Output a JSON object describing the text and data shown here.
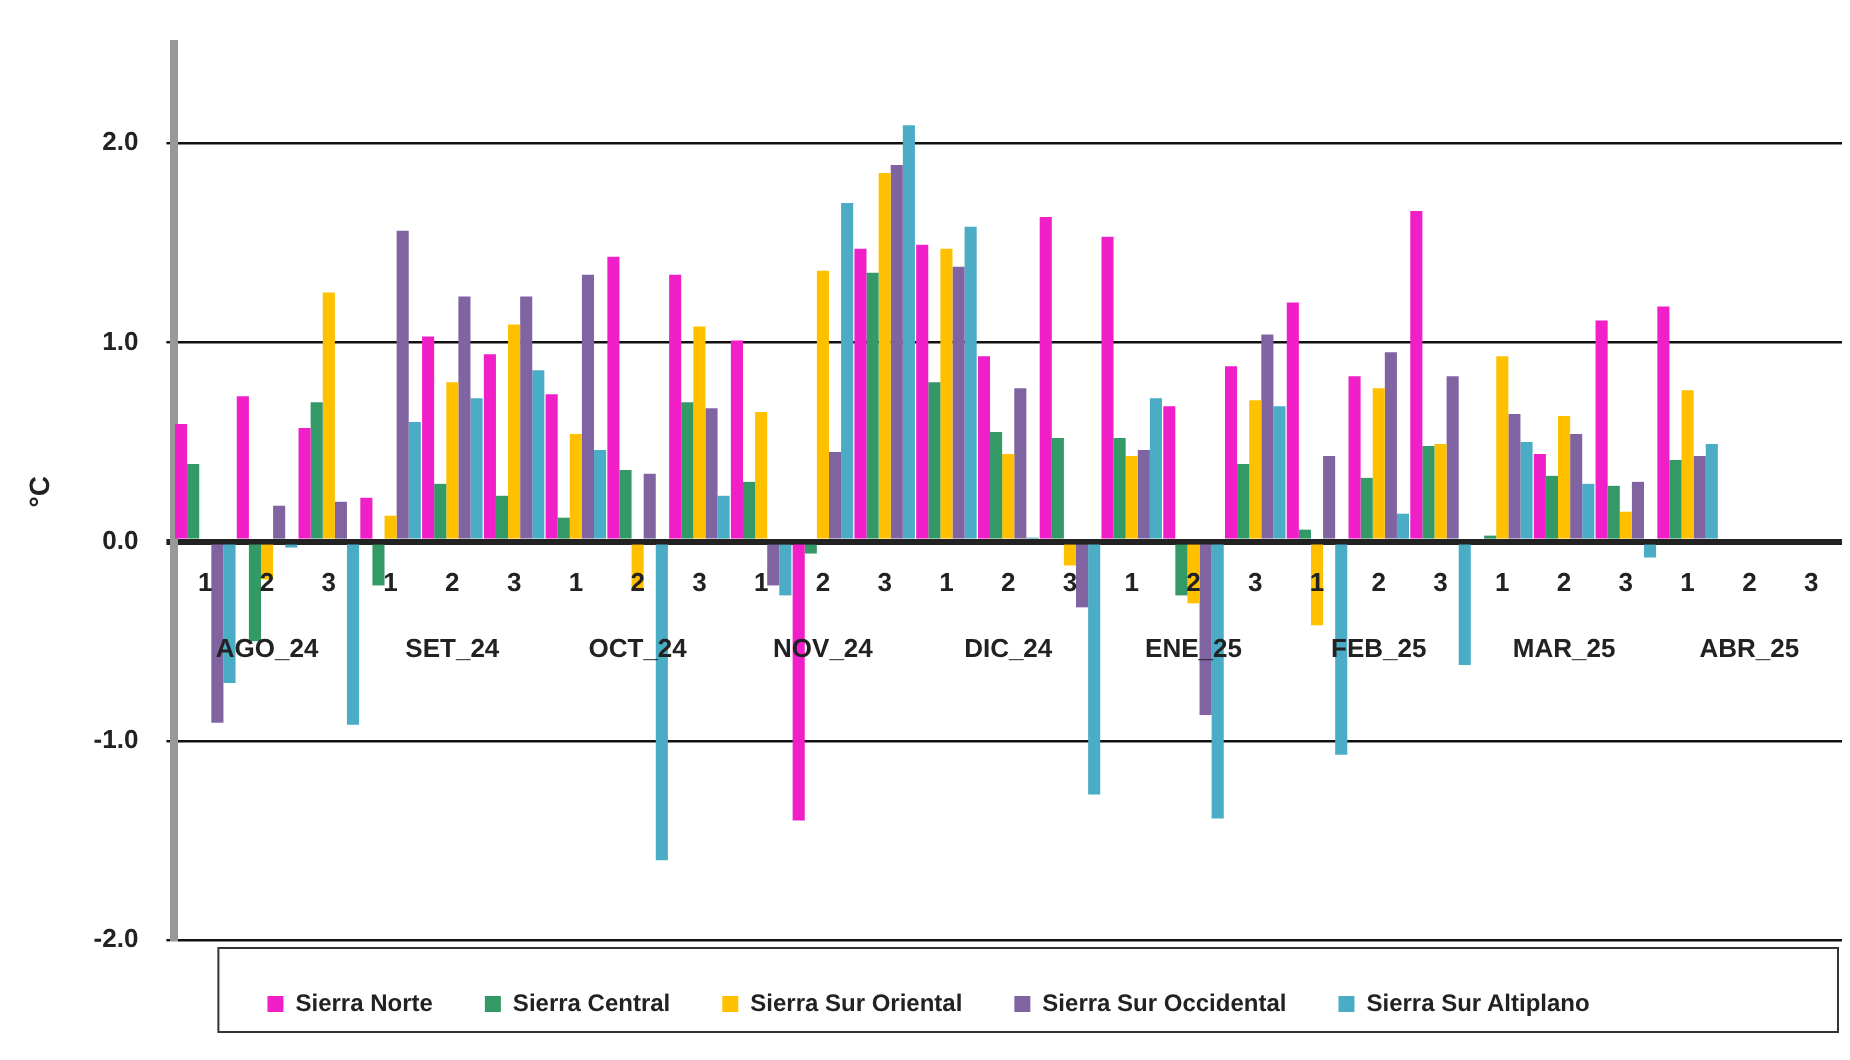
{
  "chart_data": {
    "type": "bar",
    "ylabel": "°C",
    "categories": [
      "1",
      "2",
      "3",
      "1",
      "2",
      "3",
      "1",
      "2",
      "3",
      "1",
      "2",
      "3",
      "1",
      "2",
      "3",
      "1",
      "2",
      "3",
      "1",
      "2",
      "3",
      "1",
      "2",
      "3",
      "1",
      "2",
      "3"
    ],
    "annotations": [
      "AGO_24",
      "SET_24",
      "OCT_24",
      "NOV_24",
      "DIC_24",
      "ENE_25",
      "FEB_25",
      "MAR_25",
      "ABR_25"
    ],
    "ylim": [
      -2,
      2.5
    ],
    "yticks": [
      {
        "value": -2,
        "label": "-2.0"
      },
      {
        "value": -1,
        "label": "-1.0"
      },
      {
        "value": 0,
        "label": "0.0"
      },
      {
        "value": 1,
        "label": "1.0"
      },
      {
        "value": 2,
        "label": "2.0"
      }
    ],
    "grid": "y",
    "legend": "bottom",
    "series": [
      {
        "name": "Sierra Norte",
        "color": "#f01fc8",
        "values": [
          0.59,
          0.73,
          0.57,
          0.22,
          1.03,
          0.94,
          0.74,
          1.43,
          1.34,
          1.01,
          -1.4,
          1.47,
          1.49,
          0.93,
          1.63,
          1.53,
          0.68,
          0.88,
          1.2,
          0.83,
          1.66,
          null,
          0.44,
          1.11,
          1.18,
          null,
          null
        ]
      },
      {
        "name": "Sierra Central",
        "color": "#339966",
        "values": [
          0.39,
          -0.5,
          0.7,
          -0.22,
          0.29,
          0.23,
          0.12,
          0.36,
          0.7,
          0.3,
          -0.06,
          1.35,
          0.8,
          0.55,
          0.52,
          0.52,
          -0.27,
          0.39,
          0.06,
          0.32,
          0.48,
          0.03,
          0.33,
          0.28,
          0.41,
          null,
          null
        ]
      },
      {
        "name": "Sierra Sur Oriental",
        "color": "#ffc000",
        "values": [
          null,
          -0.19,
          1.25,
          0.13,
          0.8,
          1.09,
          0.54,
          -0.24,
          1.08,
          0.65,
          1.36,
          1.85,
          1.47,
          0.44,
          -0.12,
          0.43,
          -0.31,
          0.71,
          -0.42,
          0.77,
          0.49,
          0.93,
          0.63,
          0.15,
          0.76,
          null,
          null
        ]
      },
      {
        "name": "Sierra Sur Occidental",
        "color": "#8064a2",
        "values": [
          -0.91,
          0.18,
          0.2,
          1.56,
          1.23,
          1.23,
          1.34,
          0.34,
          0.67,
          -0.22,
          0.45,
          1.89,
          1.38,
          0.77,
          -0.33,
          0.46,
          -0.87,
          1.04,
          0.43,
          0.95,
          0.83,
          0.64,
          0.54,
          0.3,
          0.43,
          null,
          null
        ]
      },
      {
        "name": "Sierra Sur Altiplano",
        "color": "#4bacc6",
        "values": [
          -0.71,
          -0.03,
          -0.92,
          0.6,
          0.72,
          0.86,
          0.46,
          -1.6,
          0.23,
          -0.27,
          1.7,
          2.09,
          1.58,
          0.02,
          -1.27,
          0.72,
          -1.39,
          0.68,
          -1.07,
          0.14,
          -0.62,
          0.5,
          0.29,
          -0.08,
          0.49,
          null,
          null
        ]
      }
    ]
  }
}
